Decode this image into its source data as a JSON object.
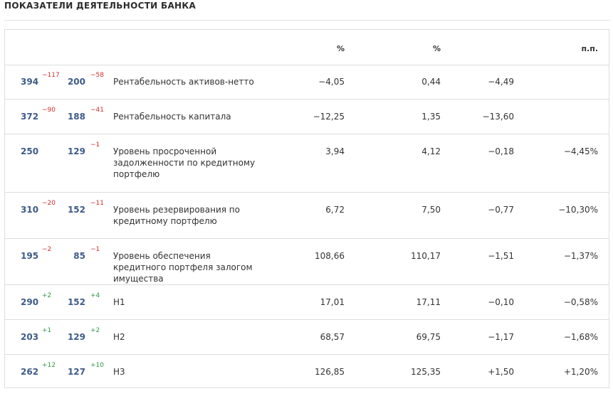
{
  "page": {
    "title": "ПОКАЗАТЕЛИ ДЕЯТЕЛЬНОСТИ БАНКА"
  },
  "table": {
    "headers": [
      "",
      "",
      "",
      "%",
      "%",
      "",
      "п.п."
    ],
    "rows": [
      {
        "rank_a": "394",
        "delta_a": "−117",
        "delta_a_sign": "neg",
        "rank_b": "200",
        "delta_b": "−58",
        "delta_b_sign": "neg",
        "name": "Рентабельность активов-нетто",
        "v1": "−4,05",
        "v2": "0,44",
        "v3": "−4,49",
        "v3_sign": "neg",
        "v4": "",
        "v4_sign": "neg"
      },
      {
        "rank_a": "372",
        "delta_a": "−90",
        "delta_a_sign": "neg",
        "rank_b": "188",
        "delta_b": "−41",
        "delta_b_sign": "neg",
        "name": "Рентабельность капитала",
        "v1": "−12,25",
        "v2": "1,35",
        "v3": "−13,60",
        "v3_sign": "neg",
        "v4": "",
        "v4_sign": "neg"
      },
      {
        "rank_a": "250",
        "delta_a": "",
        "delta_a_sign": "neg",
        "rank_b": "129",
        "delta_b": "−1",
        "delta_b_sign": "neg",
        "name": "Уровень просроченной задолженности по кредитному портфелю",
        "v1": "3,94",
        "v2": "4,12",
        "v3": "−0,18",
        "v3_sign": "neg",
        "v4": "−4,45%",
        "v4_sign": "neg"
      },
      {
        "rank_a": "310",
        "delta_a": "−20",
        "delta_a_sign": "neg",
        "rank_b": "152",
        "delta_b": "−11",
        "delta_b_sign": "neg",
        "name": "Уровень резервирования по кредитному портфелю",
        "v1": "6,72",
        "v2": "7,50",
        "v3": "−0,77",
        "v3_sign": "neg",
        "v4": "−10,30%",
        "v4_sign": "neg"
      },
      {
        "rank_a": "195",
        "delta_a": "−2",
        "delta_a_sign": "neg",
        "rank_b": "85",
        "delta_b": "−1",
        "delta_b_sign": "neg",
        "name": "Уровень обеспечения кредитного портфеля залогом имущества",
        "v1": "108,66",
        "v2": "110,17",
        "v3": "−1,51",
        "v3_sign": "neg",
        "v4": "−1,37%",
        "v4_sign": "neg"
      },
      {
        "rank_a": "290",
        "delta_a": "+2",
        "delta_a_sign": "pos",
        "rank_b": "152",
        "delta_b": "+4",
        "delta_b_sign": "pos",
        "name": "Н1",
        "v1": "17,01",
        "v2": "17,11",
        "v3": "−0,10",
        "v3_sign": "neg",
        "v4": "−0,58%",
        "v4_sign": "neg"
      },
      {
        "rank_a": "203",
        "delta_a": "+1",
        "delta_a_sign": "pos",
        "rank_b": "129",
        "delta_b": "+2",
        "delta_b_sign": "pos",
        "name": "Н2",
        "v1": "68,57",
        "v2": "69,75",
        "v3": "−1,17",
        "v3_sign": "neg",
        "v4": "−1,68%",
        "v4_sign": "neg"
      },
      {
        "rank_a": "262",
        "delta_a": "+12",
        "delta_a_sign": "pos",
        "rank_b": "127",
        "delta_b": "+10",
        "delta_b_sign": "pos",
        "name": "Н3",
        "v1": "126,85",
        "v2": "125,35",
        "v3": "+1,50",
        "v3_sign": "pos",
        "v4": "+1,20%",
        "v4_sign": "pos"
      }
    ]
  },
  "colors": {
    "rank": "#3d5a8a",
    "negative": "#d32f2f",
    "positive": "#2e9a47",
    "border": "#dddddd"
  }
}
